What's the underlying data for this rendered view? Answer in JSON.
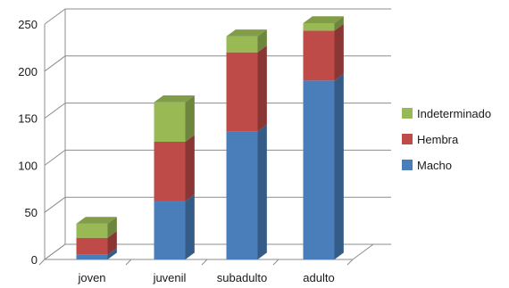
{
  "chart_data": {
    "type": "bar",
    "stacked": true,
    "three_d": true,
    "categories": [
      "joven",
      "juvenil",
      "subadulto",
      "adulto"
    ],
    "series": [
      {
        "name": "Macho",
        "color": "#4a7ebb",
        "values": [
          5,
          62,
          136,
          190
        ]
      },
      {
        "name": "Hembra",
        "color": "#be4b48",
        "values": [
          18,
          63,
          84,
          53
        ]
      },
      {
        "name": "Indeterminado",
        "color": "#98b954",
        "values": [
          15,
          42,
          17,
          8
        ]
      }
    ],
    "y_ticks": [
      "0",
      "50",
      "100",
      "150",
      "200",
      "250"
    ],
    "ylim": [
      0,
      250
    ],
    "grid": true,
    "legend_position": "right"
  }
}
